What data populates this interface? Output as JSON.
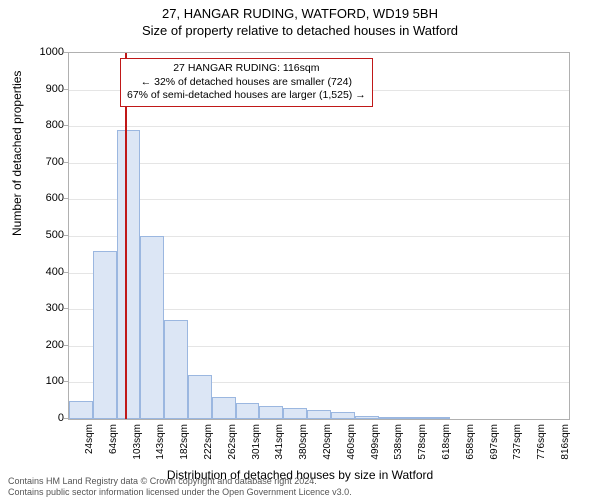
{
  "title": "27, HANGAR RUDING, WATFORD, WD19 5BH",
  "subtitle": "Size of property relative to detached houses in Watford",
  "y_axis_label": "Number of detached properties",
  "x_axis_label": "Distribution of detached houses by size in Watford",
  "chart": {
    "type": "histogram",
    "ylim": [
      0,
      1000
    ],
    "ytick_step": 100,
    "yticks": [
      0,
      100,
      200,
      300,
      400,
      500,
      600,
      700,
      800,
      900,
      1000
    ],
    "x_categories": [
      "24sqm",
      "64sqm",
      "103sqm",
      "143sqm",
      "182sqm",
      "222sqm",
      "262sqm",
      "301sqm",
      "341sqm",
      "380sqm",
      "420sqm",
      "460sqm",
      "499sqm",
      "538sqm",
      "578sqm",
      "618sqm",
      "658sqm",
      "697sqm",
      "737sqm",
      "776sqm",
      "816sqm"
    ],
    "bar_values": [
      50,
      460,
      790,
      500,
      270,
      120,
      60,
      45,
      35,
      30,
      25,
      20,
      8,
      5,
      3,
      2,
      1,
      1,
      1,
      1,
      0
    ],
    "bar_fill": "#dce6f5",
    "bar_border": "#9bb7e0",
    "grid_color": "#e5e5e5",
    "border_color": "#b0b0b0",
    "background_color": "#ffffff",
    "reference_line": {
      "color": "#c01818",
      "position_category_index": 2.35
    }
  },
  "annotation": {
    "border_color": "#c01818",
    "lines": [
      "27 HANGAR RUDING: 116sqm",
      "← 32% of detached houses are smaller (724)",
      "67% of semi-detached houses are larger (1,525) →"
    ]
  },
  "footer_lines": [
    "Contains HM Land Registry data © Crown copyright and database right 2024.",
    "Contains public sector information licensed under the Open Government Licence v3.0."
  ],
  "fonts": {
    "title_size": 13,
    "axis_label_size": 12,
    "tick_size": 11,
    "annotation_size": 10.5,
    "footer_size": 9
  }
}
